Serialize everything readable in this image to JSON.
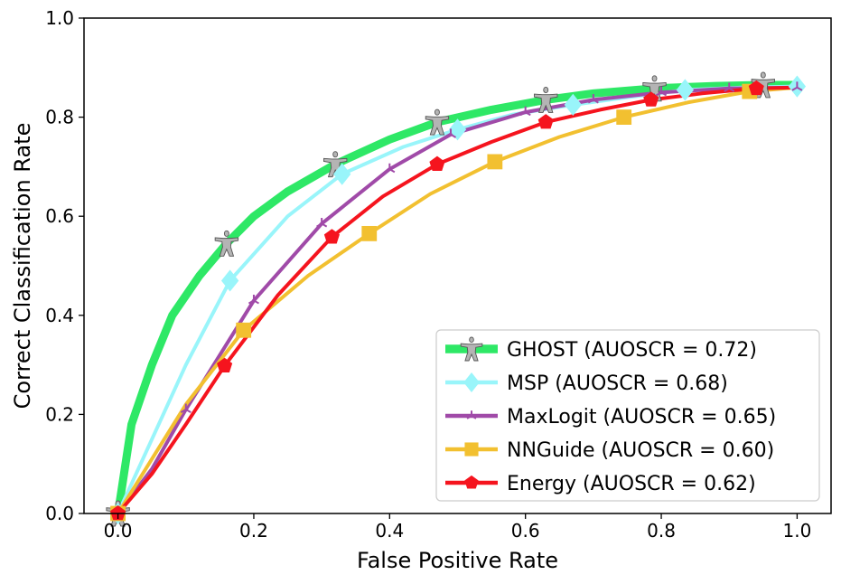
{
  "chart_data": {
    "type": "line",
    "title": "",
    "xlabel": "False Positive Rate",
    "ylabel": "Correct Classification Rate",
    "xlim": [
      -0.05,
      1.05
    ],
    "ylim": [
      0.0,
      1.0
    ],
    "xticks": [
      "0.0",
      "0.2",
      "0.4",
      "0.6",
      "0.8",
      "1.0"
    ],
    "yticks": [
      "0.0",
      "0.2",
      "0.4",
      "0.6",
      "0.8",
      "1.0"
    ],
    "grid": false,
    "legend_position": "lower-right",
    "series": [
      {
        "name": "GHOST (AUOSCR = 0.72)",
        "color": "#2ee866",
        "marker": "figure",
        "x": [
          0.0,
          0.02,
          0.05,
          0.08,
          0.12,
          0.16,
          0.2,
          0.25,
          0.32,
          0.4,
          0.47,
          0.55,
          0.63,
          0.7,
          0.79,
          0.88,
          0.95,
          1.0
        ],
        "y": [
          0.0,
          0.18,
          0.3,
          0.4,
          0.48,
          0.545,
          0.6,
          0.65,
          0.705,
          0.755,
          0.79,
          0.815,
          0.835,
          0.848,
          0.858,
          0.863,
          0.865,
          0.865
        ]
      },
      {
        "name": "MSP (AUOSCR = 0.68)",
        "color": "#99f5fa",
        "marker": "diamond",
        "x": [
          0.0,
          0.05,
          0.1,
          0.165,
          0.25,
          0.33,
          0.42,
          0.5,
          0.58,
          0.67,
          0.75,
          0.835,
          0.92,
          1.0
        ],
        "y": [
          0.0,
          0.15,
          0.3,
          0.47,
          0.6,
          0.685,
          0.74,
          0.775,
          0.805,
          0.825,
          0.84,
          0.855,
          0.86,
          0.862
        ]
      },
      {
        "name": "MaxLogit (AUOSCR = 0.65)",
        "color": "#a04aa8",
        "marker": "tri",
        "x": [
          0.0,
          0.05,
          0.1,
          0.2,
          0.3,
          0.4,
          0.49,
          0.6,
          0.7,
          0.8,
          0.9,
          1.0
        ],
        "y": [
          0.0,
          0.09,
          0.21,
          0.43,
          0.585,
          0.695,
          0.765,
          0.81,
          0.835,
          0.85,
          0.858,
          0.86
        ]
      },
      {
        "name": "NNGuide (AUOSCR = 0.60)",
        "color": "#f2c030",
        "marker": "square",
        "x": [
          0.0,
          0.05,
          0.1,
          0.185,
          0.28,
          0.37,
          0.46,
          0.555,
          0.65,
          0.745,
          0.84,
          0.93,
          1.0
        ],
        "y": [
          0.0,
          0.11,
          0.22,
          0.37,
          0.48,
          0.565,
          0.645,
          0.71,
          0.76,
          0.8,
          0.83,
          0.852,
          0.86
        ]
      },
      {
        "name": "Energy (AUOSCR = 0.62)",
        "color": "#f5141e",
        "marker": "pentagon",
        "x": [
          0.0,
          0.05,
          0.1,
          0.157,
          0.235,
          0.315,
          0.39,
          0.47,
          0.55,
          0.63,
          0.71,
          0.785,
          0.86,
          0.94,
          1.0
        ],
        "y": [
          0.0,
          0.08,
          0.18,
          0.298,
          0.44,
          0.558,
          0.64,
          0.705,
          0.75,
          0.79,
          0.815,
          0.835,
          0.848,
          0.858,
          0.86
        ]
      }
    ]
  }
}
